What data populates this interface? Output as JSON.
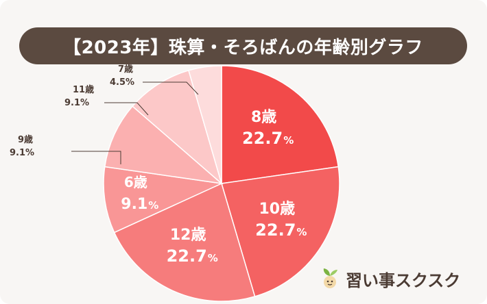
{
  "title": "【2023年】珠算・そろばんの年齢別グラフ",
  "brand": {
    "name": "習い事スクスク"
  },
  "colors": {
    "background": "#f8f6f4",
    "title_bar": "#5b4a40",
    "text_dark": "#4b3b33"
  },
  "chart_data": {
    "type": "pie",
    "title": "【2023年】珠算・そろばんの年齢別グラフ",
    "start_angle_deg": 0,
    "direction": "clockwise",
    "slices": [
      {
        "label": "8歳",
        "value": 22.7,
        "pct_text": "22.7",
        "color": "#f24a4a",
        "label_position": "inside"
      },
      {
        "label": "10歳",
        "value": 22.7,
        "pct_text": "22.7",
        "color": "#f46262",
        "label_position": "inside"
      },
      {
        "label": "12歳",
        "value": 22.7,
        "pct_text": "22.7",
        "color": "#f67c7c",
        "label_position": "inside"
      },
      {
        "label": "6歳",
        "value": 9.1,
        "pct_text": "9.1",
        "color": "#f99696",
        "label_position": "inside"
      },
      {
        "label": "9歳",
        "value": 9.1,
        "pct_text": "9.1",
        "color": "#fbb0b0",
        "label_position": "outside"
      },
      {
        "label": "11歳",
        "value": 9.1,
        "pct_text": "9.1",
        "color": "#fcc8c8",
        "label_position": "outside"
      },
      {
        "label": "7歳",
        "value": 4.5,
        "pct_text": "4.5",
        "color": "#fddcdc",
        "label_position": "outside"
      }
    ],
    "percent_sign": "%"
  }
}
